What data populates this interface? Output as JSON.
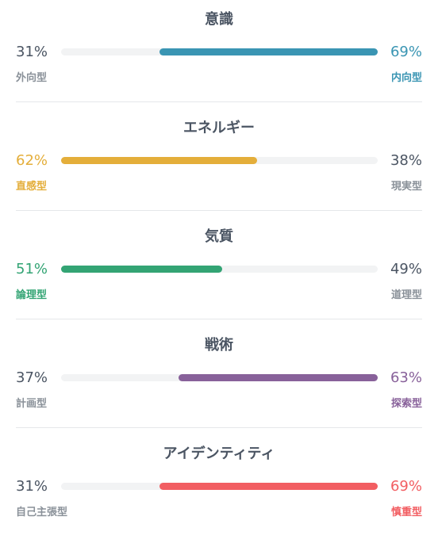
{
  "traits": [
    {
      "title": "意識",
      "left_pct": "31%",
      "right_pct": "69%",
      "left_label": "外向型",
      "right_label": "内向型",
      "dominant": "right",
      "value_percent": 69,
      "color": "#3a95b3"
    },
    {
      "title": "エネルギー",
      "left_pct": "62%",
      "right_pct": "38%",
      "left_label": "直感型",
      "right_label": "現実型",
      "dominant": "left",
      "value_percent": 62,
      "color": "#e4ae3a"
    },
    {
      "title": "気質",
      "left_pct": "51%",
      "right_pct": "49%",
      "left_label": "論理型",
      "right_label": "道理型",
      "dominant": "left",
      "value_percent": 51,
      "color": "#33a474"
    },
    {
      "title": "戦術",
      "left_pct": "37%",
      "right_pct": "63%",
      "left_label": "計画型",
      "right_label": "探索型",
      "dominant": "right",
      "value_percent": 63,
      "color": "#88619a"
    },
    {
      "title": "アイデンティティ",
      "left_pct": "31%",
      "right_pct": "69%",
      "left_label": "自己主張型",
      "right_label": "慎重型",
      "dominant": "right",
      "value_percent": 69,
      "color": "#f25e62"
    }
  ]
}
